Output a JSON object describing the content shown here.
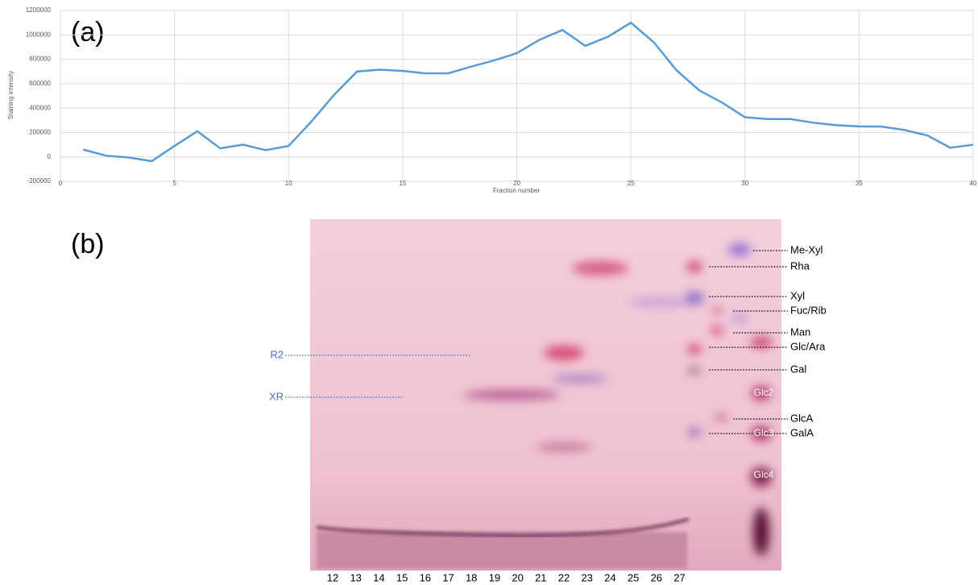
{
  "chart_data": {
    "type": "line",
    "panel_label": "(a)",
    "y_label": "Staining intensity",
    "x_label": "Fraction number",
    "x": [
      1,
      2,
      3,
      4,
      5,
      6,
      7,
      8,
      9,
      10,
      11,
      12,
      13,
      14,
      15,
      16,
      17,
      18,
      19,
      20,
      21,
      22,
      23,
      24,
      25,
      26,
      27,
      28,
      29,
      30,
      31,
      32,
      33,
      34,
      35,
      36,
      37,
      38,
      39,
      40
    ],
    "series": [
      {
        "color": "#5b9bd5",
        "values": [
          60000,
          10000,
          -5000,
          -35000,
          90000,
          210000,
          70000,
          100000,
          55000,
          90000,
          290000,
          510000,
          700000,
          715000,
          705000,
          685000,
          685000,
          740000,
          790000,
          850000,
          960000,
          1040000,
          910000,
          985000,
          1100000,
          940000,
          710000,
          545000,
          445000,
          325000,
          310000,
          310000,
          280000,
          260000,
          250000,
          248000,
          220000,
          175000,
          75000,
          100000
        ]
      }
    ],
    "xlim": [
      0,
      40
    ],
    "xticks": [
      0,
      5,
      10,
      15,
      20,
      25,
      30,
      35,
      40
    ],
    "ylim": [
      -200000,
      1200000
    ],
    "yticks": [
      -200000,
      0,
      200000,
      400000,
      600000,
      800000,
      1000000,
      1200000
    ],
    "grid": true
  },
  "tlc": {
    "panel_label": "(b)",
    "lane_labels": [
      12,
      13,
      14,
      15,
      16,
      17,
      18,
      19,
      20,
      21,
      22,
      23,
      24,
      25,
      26,
      27
    ],
    "markers": [
      "Me-Xyl",
      "Rha",
      "Xyl",
      "Fuc/Rib",
      "Man",
      "Glc/Ara",
      "Gal",
      "GlcA",
      "GalA"
    ],
    "annotations": [
      "R2",
      "XR"
    ],
    "standards": [
      "Glc2",
      "Glc3",
      "Glc4"
    ]
  }
}
